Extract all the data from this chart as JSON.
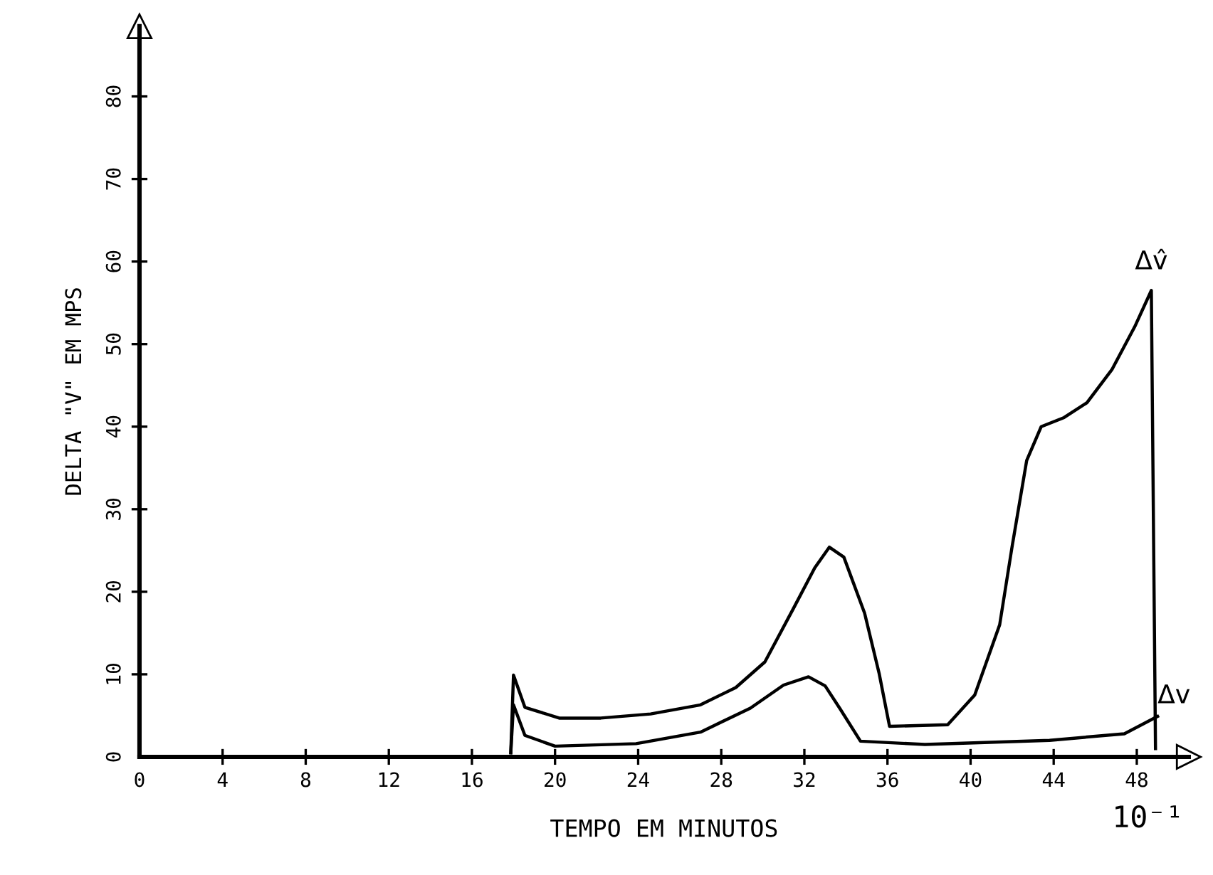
{
  "chart_data": {
    "type": "line",
    "xlabel": "TEMPO EM MINUTOS",
    "ylabel": "DELTA \"V\" EM MPS",
    "annotations": [
      "10⁻¹"
    ],
    "series": [
      {
        "name": "Δv̂",
        "color": "#000000",
        "x": [
          17.87,
          18.0,
          18.55,
          20.2,
          22.2,
          24.6,
          27.0,
          28.7,
          30.1,
          31.5,
          32.5,
          33.2,
          33.9,
          34.9,
          35.6,
          36.1,
          38.9,
          40.2,
          41.4,
          42.0,
          42.7,
          43.4,
          44.5,
          45.6,
          46.8,
          47.9,
          48.7,
          48.9
        ],
        "values": [
          0.5,
          9.9,
          6.0,
          4.7,
          4.7,
          5.2,
          6.3,
          8.4,
          11.5,
          18.1,
          22.9,
          25.4,
          24.2,
          17.4,
          10.1,
          3.7,
          3.9,
          7.5,
          16.0,
          25.5,
          35.9,
          40.0,
          41.1,
          42.9,
          46.9,
          52.1,
          56.5,
          1.0
        ]
      },
      {
        "name": "Δv",
        "color": "#000000",
        "x": [
          17.87,
          18.0,
          18.55,
          20.0,
          23.9,
          27.0,
          29.4,
          31.0,
          32.2,
          33.0,
          33.7,
          34.7,
          37.8,
          43.8,
          47.4,
          49.0
        ],
        "values": [
          0.5,
          6.3,
          2.6,
          1.3,
          1.6,
          3.0,
          5.9,
          8.7,
          9.7,
          8.6,
          5.9,
          1.9,
          1.5,
          2.0,
          2.8,
          4.9
        ]
      }
    ],
    "xlim": [
      0,
      50.5
    ],
    "ylim": [
      0,
      88.5
    ],
    "xticks": [
      0,
      4,
      8,
      12,
      16,
      20,
      24,
      28,
      32,
      36,
      40,
      44,
      48
    ],
    "yticks": [
      0,
      10,
      20,
      30,
      40,
      50,
      60,
      70,
      80
    ],
    "grid": false,
    "legend": false,
    "marker": "none",
    "line_style": "solid"
  }
}
